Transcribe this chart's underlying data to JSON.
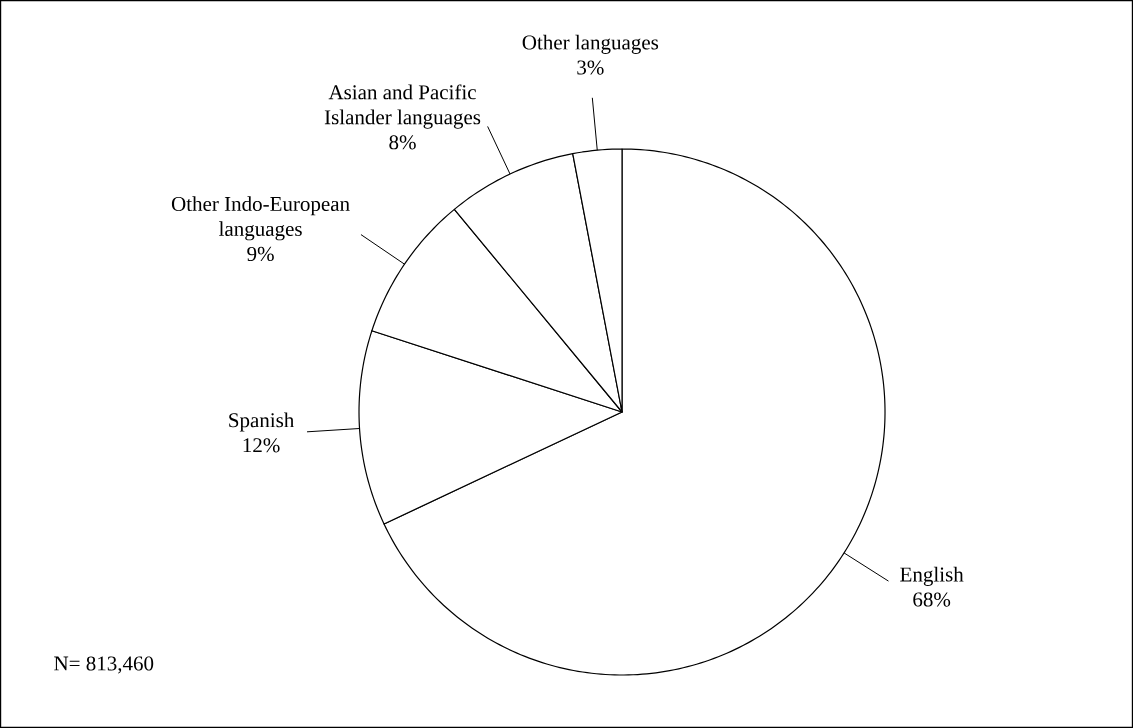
{
  "chart_data": {
    "type": "pie",
    "categories": [
      "English",
      "Spanish",
      "Other Indo-European languages",
      "Asian and Pacific Islander languages",
      "Other languages"
    ],
    "values": [
      68,
      12,
      9,
      8,
      3
    ],
    "value_labels": [
      "68%",
      "12%",
      "9%",
      "8%",
      "3%"
    ],
    "colors": [
      "#ffffff",
      "#ffffff",
      "#ffffff",
      "#ffffff",
      "#ffffff"
    ],
    "annotations": [
      "N= 813,460"
    ]
  }
}
